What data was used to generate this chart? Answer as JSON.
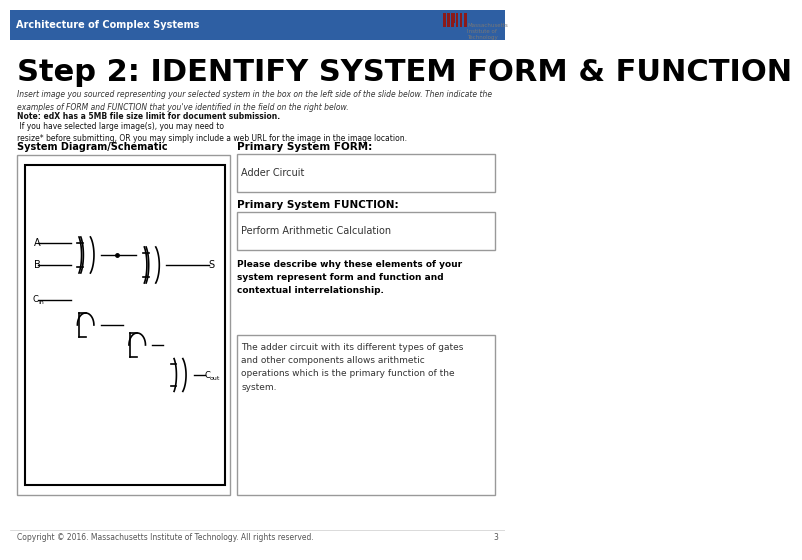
{
  "header_bg": "#2E5FA3",
  "header_text": "Architecture of Complex Systems",
  "header_text_color": "#FFFFFF",
  "header_fontsize": 7,
  "title": "Step 2: IDENTIFY SYSTEM FORM & FUNCTION",
  "title_color": "#000000",
  "title_fontsize": 22,
  "bg_color": "#FFFFFF",
  "intro_text": "Insert image you sourced representing your selected system in the box on the left side of the slide below. Then indicate the\nexamples of FORM and FUNCTION that you've identified in the field on the right below.",
  "note_bold": "Note: edX has a 5MB file size limit for document submission.",
  "note_regular": " If you have selected large image(s), you may need to\nresize* before submitting, OR you may simply include a web URL for the image in the image location.",
  "left_label": "System Diagram/Schematic",
  "right_label_form": "Primary System FORM:",
  "right_label_function": "Primary System FUNCTION:",
  "form_value": "Adder Circuit",
  "function_value": "Perform Arithmetic Calculation",
  "describe_bold": "Please describe why these elements of your\nsystem represent form and function and\ncontextual interrelationship.",
  "description_text": "The adder circuit with its different types of gates\nand other components allows arithmetic\noperations which is the primary function of the\nsystem.",
  "footer_text": "Copyright © 2016. Massachusetts Institute of Technology. All rights reserved.",
  "page_number": "3",
  "footer_color": "#555555",
  "box_border_color": "#999999",
  "label_color": "#333333",
  "mit_logo_color": "#8B1A1A"
}
